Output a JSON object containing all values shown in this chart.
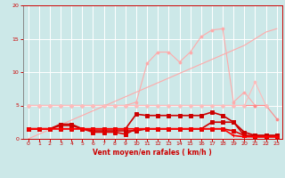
{
  "x": [
    0,
    1,
    2,
    3,
    4,
    5,
    6,
    7,
    8,
    9,
    10,
    11,
    12,
    13,
    14,
    15,
    16,
    17,
    18,
    19,
    20,
    21,
    22,
    23
  ],
  "series": [
    {
      "color": "#ffaaaa",
      "lw": 0.8,
      "marker": null,
      "y": [
        0.0,
        0.7,
        1.4,
        2.1,
        2.8,
        3.5,
        4.2,
        4.9,
        5.6,
        6.3,
        7.0,
        7.7,
        8.4,
        9.1,
        9.8,
        10.5,
        11.2,
        11.9,
        12.6,
        13.3,
        14.0,
        15.0,
        16.0,
        16.5
      ]
    },
    {
      "color": "#ffaaaa",
      "lw": 0.8,
      "marker": "o",
      "markersize": 2,
      "y": [
        5.0,
        5.0,
        5.0,
        5.0,
        5.0,
        5.0,
        5.0,
        5.0,
        5.0,
        5.0,
        5.5,
        11.3,
        13.0,
        13.0,
        11.5,
        13.0,
        15.3,
        16.3,
        16.5,
        5.5,
        7.0,
        5.0,
        5.0,
        null
      ]
    },
    {
      "color": "#ff8888",
      "lw": 0.8,
      "marker": "o",
      "markersize": 2,
      "y": [
        5.0,
        5.0,
        5.0,
        5.0,
        5.0,
        5.0,
        5.0,
        5.0,
        5.0,
        5.0,
        5.0,
        5.0,
        5.0,
        5.0,
        5.0,
        5.0,
        5.0,
        5.0,
        5.0,
        5.0,
        5.0,
        5.0,
        5.0,
        3.0
      ]
    },
    {
      "color": "#ffbbbb",
      "lw": 0.8,
      "marker": "o",
      "markersize": 2,
      "y": [
        5.0,
        5.0,
        5.0,
        5.0,
        5.0,
        5.0,
        5.0,
        5.0,
        5.0,
        5.0,
        5.0,
        5.0,
        5.0,
        5.0,
        5.0,
        5.0,
        5.0,
        5.0,
        5.0,
        5.0,
        5.0,
        8.5,
        5.0,
        null
      ]
    },
    {
      "color": "#cc0000",
      "lw": 1.2,
      "marker": "s",
      "markersize": 2.5,
      "y": [
        1.5,
        1.5,
        1.5,
        2.2,
        2.2,
        1.5,
        1.5,
        1.5,
        1.5,
        1.5,
        3.7,
        3.5,
        3.5,
        3.5,
        3.5,
        3.5,
        3.5,
        4.0,
        3.5,
        2.5,
        0.5,
        0.5,
        0.5,
        0.5
      ]
    },
    {
      "color": "#cc0000",
      "lw": 1.2,
      "marker": "s",
      "markersize": 2.5,
      "y": [
        1.5,
        1.5,
        1.5,
        2.0,
        2.0,
        1.5,
        1.2,
        1.2,
        1.2,
        1.2,
        1.2,
        1.5,
        1.5,
        1.5,
        1.5,
        1.5,
        1.5,
        2.5,
        2.5,
        2.5,
        1.0,
        0.5,
        0.5,
        0.5
      ]
    },
    {
      "color": "#dd0000",
      "lw": 1.2,
      "marker": "s",
      "markersize": 2.5,
      "y": [
        1.5,
        1.5,
        1.5,
        1.5,
        1.5,
        1.5,
        1.0,
        1.0,
        1.0,
        0.7,
        1.5,
        1.5,
        1.5,
        1.5,
        1.5,
        1.5,
        1.5,
        1.5,
        1.5,
        1.2,
        0.5,
        0.3,
        0.3,
        0.3
      ]
    },
    {
      "color": "#ff0000",
      "lw": 1.2,
      "marker": "+",
      "markersize": 3,
      "y": [
        1.5,
        1.5,
        1.5,
        1.5,
        1.5,
        1.5,
        1.5,
        1.5,
        1.5,
        1.5,
        1.5,
        1.5,
        1.5,
        1.5,
        1.5,
        1.5,
        1.5,
        1.5,
        1.5,
        0.5,
        0.3,
        0.3,
        0.3,
        0.3
      ]
    }
  ],
  "xlim": [
    -0.5,
    23.5
  ],
  "ylim": [
    0,
    20
  ],
  "yticks": [
    0,
    5,
    10,
    15,
    20
  ],
  "xticks": [
    0,
    1,
    2,
    3,
    4,
    5,
    6,
    7,
    8,
    9,
    10,
    11,
    12,
    13,
    14,
    15,
    16,
    17,
    18,
    19,
    20,
    21,
    22,
    23
  ],
  "xlabel": "Vent moyen/en rafales ( km/h )",
  "background_color": "#cce8e8",
  "grid_color": "#ffffff",
  "tick_color": "#cc0000",
  "label_color": "#cc0000",
  "spine_color": "#cc0000"
}
